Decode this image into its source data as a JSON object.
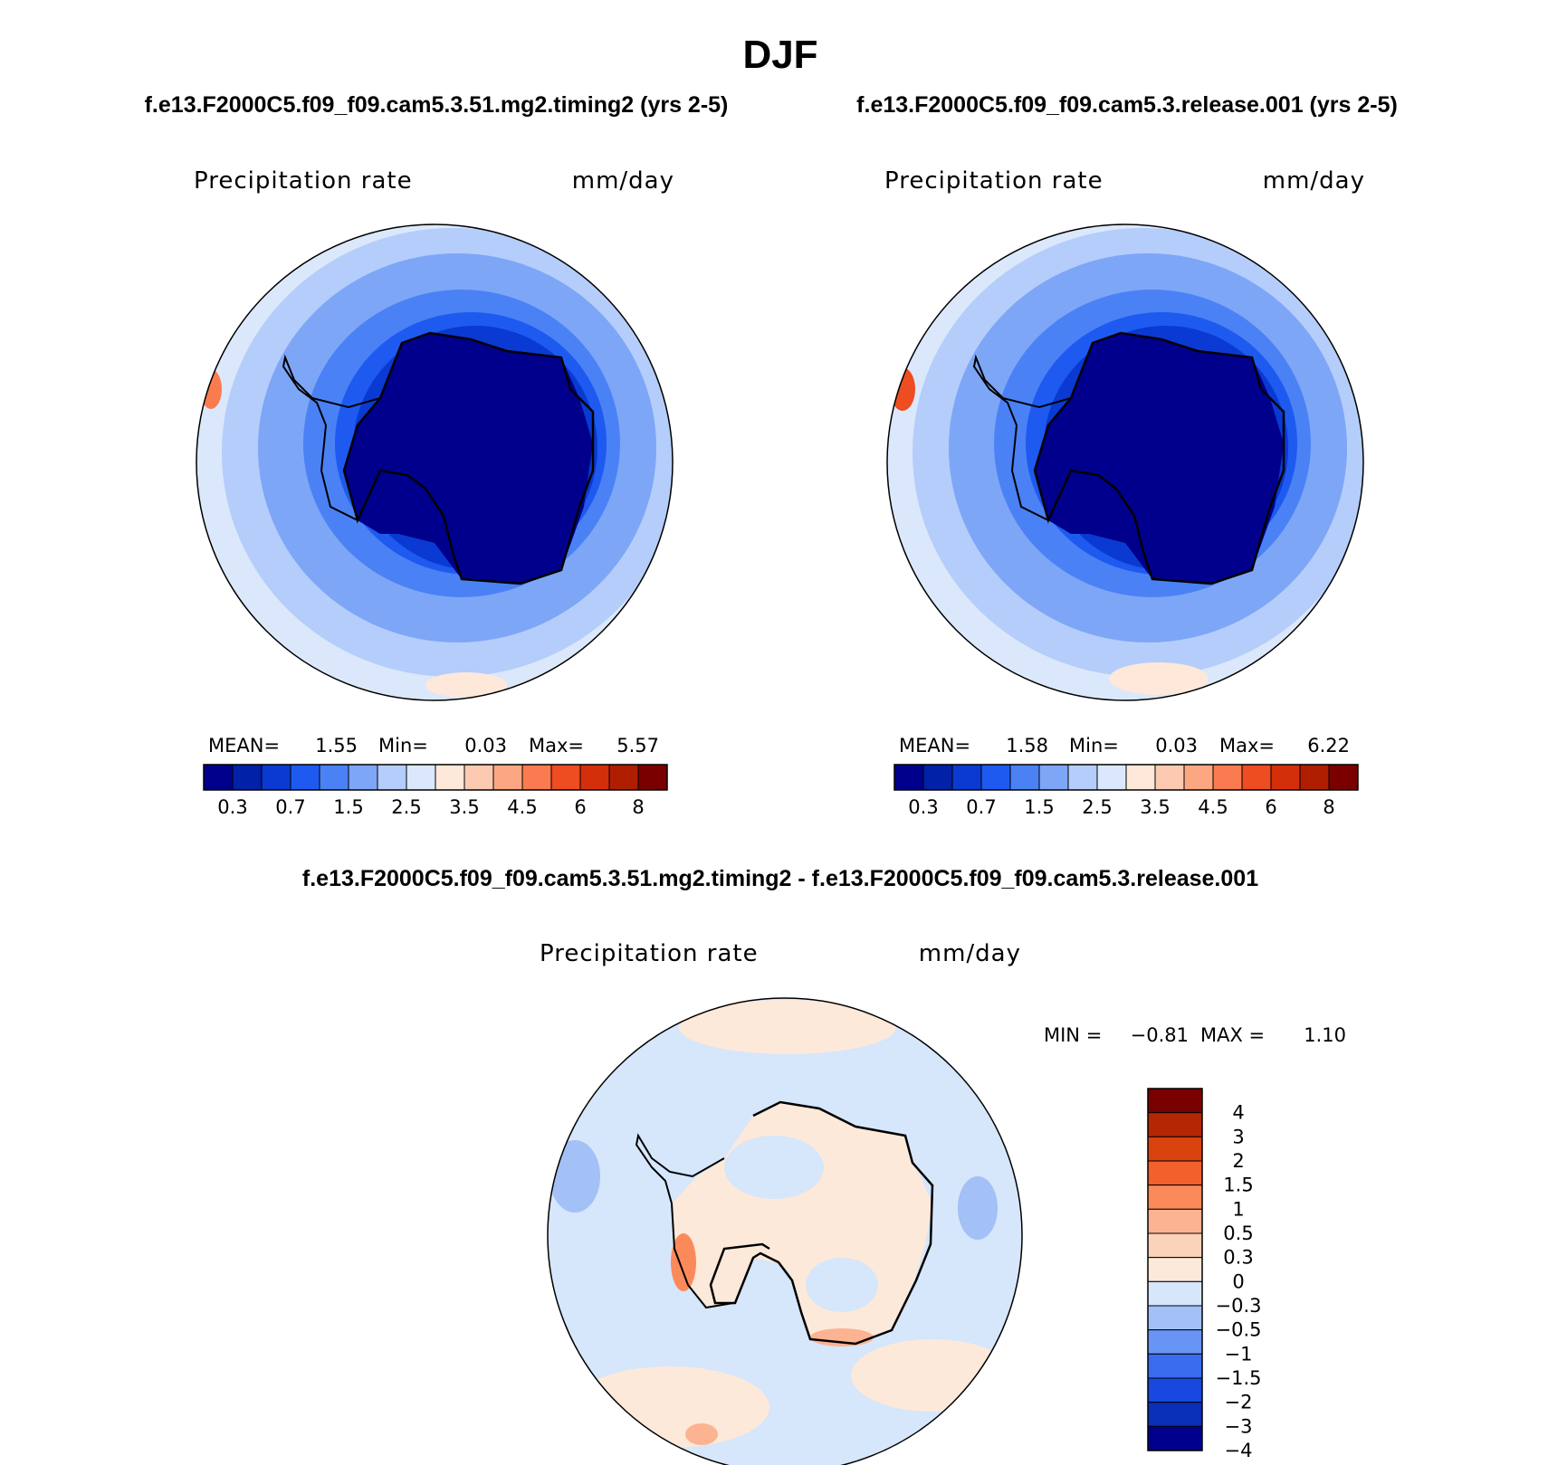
{
  "page": {
    "title": "DJF"
  },
  "colors": {
    "abs_scale": [
      "#00008c",
      "#0021a8",
      "#0a3ad1",
      "#1e5af0",
      "#4a82f5",
      "#7ea6f7",
      "#b4cdfa",
      "#dbe8fb",
      "#fde8da",
      "#fbcab1",
      "#fca782",
      "#fa7b4f",
      "#ee4c21",
      "#d42f0b",
      "#b01e02",
      "#7a0000"
    ],
    "diff_scale": [
      "#00008c",
      "#0a2fb8",
      "#1848e0",
      "#3a6cf0",
      "#6894f5",
      "#a3c0f7",
      "#d6e6fb",
      "#fde9da",
      "#fbd2ba",
      "#fbb391",
      "#fb8a5b",
      "#f2602c",
      "#d8420f",
      "#b42705",
      "#7a0000"
    ],
    "coast": "#000000",
    "background": "#ffffff"
  },
  "chart_data": [
    {
      "type": "heatmap",
      "projection": "south-polar-stereographic",
      "title": "f.e13.F2000C5.f09_f09.cam5.3.51.mg2.timing2 (yrs 2-5)",
      "variable": "Precipitation rate",
      "units": "mm/day",
      "stats": {
        "mean_label": "MEAN=",
        "mean": "1.55",
        "min_label": "Min=",
        "min": "0.03",
        "max_label": "Max=",
        "max": "5.57"
      },
      "colorbar": {
        "orientation": "horizontal",
        "ticks": [
          "0.3",
          "0.7",
          "1.5",
          "2.5",
          "3.5",
          "4.5",
          "6",
          "8"
        ],
        "levels": [
          0.2,
          0.3,
          0.5,
          0.7,
          1,
          1.5,
          2,
          2.5,
          3,
          3.5,
          4,
          4.5,
          5,
          6,
          7,
          8
        ]
      },
      "field_summary": {
        "continent": 0.1,
        "coastal_ring": 0.6,
        "ocean_ring": 1.5,
        "outer_ring": 2.4,
        "pacific_outer": 3.2
      }
    },
    {
      "type": "heatmap",
      "projection": "south-polar-stereographic",
      "title": "f.e13.F2000C5.f09_f09.cam5.3.release.001 (yrs 2-5)",
      "variable": "Precipitation rate",
      "units": "mm/day",
      "stats": {
        "mean_label": "MEAN=",
        "mean": "1.58",
        "min_label": "Min=",
        "min": "0.03",
        "max_label": "Max=",
        "max": "6.22"
      },
      "colorbar": {
        "orientation": "horizontal",
        "ticks": [
          "0.3",
          "0.7",
          "1.5",
          "2.5",
          "3.5",
          "4.5",
          "6",
          "8"
        ],
        "levels": [
          0.2,
          0.3,
          0.5,
          0.7,
          1,
          1.5,
          2,
          2.5,
          3,
          3.5,
          4,
          4.5,
          5,
          6,
          7,
          8
        ]
      },
      "field_summary": {
        "continent": 0.1,
        "coastal_ring": 0.6,
        "ocean_ring": 1.5,
        "outer_ring": 2.4,
        "pacific_outer": 3.2
      }
    },
    {
      "type": "heatmap",
      "projection": "south-polar-stereographic",
      "title": "f.e13.F2000C5.f09_f09.cam5.3.51.mg2.timing2 - f.e13.F2000C5.f09_f09.cam5.3.release.001",
      "variable": "Precipitation rate",
      "units": "mm/day",
      "stats": {
        "min_label": "MIN =",
        "min": "−0.81",
        "max_label": "MAX =",
        "max": "1.10"
      },
      "colorbar": {
        "orientation": "vertical",
        "ticks": [
          "4",
          "3",
          "2",
          "1.5",
          "1",
          "0.5",
          "0.3",
          "0",
          "−0.3",
          "−0.5",
          "−1",
          "−1.5",
          "−2",
          "−3",
          "−4"
        ],
        "levels": [
          -4,
          -3,
          -2,
          -1.5,
          -1,
          -0.5,
          -0.3,
          0,
          0.3,
          0.5,
          1,
          1.5,
          2,
          3,
          4
        ]
      },
      "field_summary": {
        "continent": 0.1,
        "ocean_background": -0.1,
        "max": 1.1,
        "min": -0.81
      }
    }
  ]
}
